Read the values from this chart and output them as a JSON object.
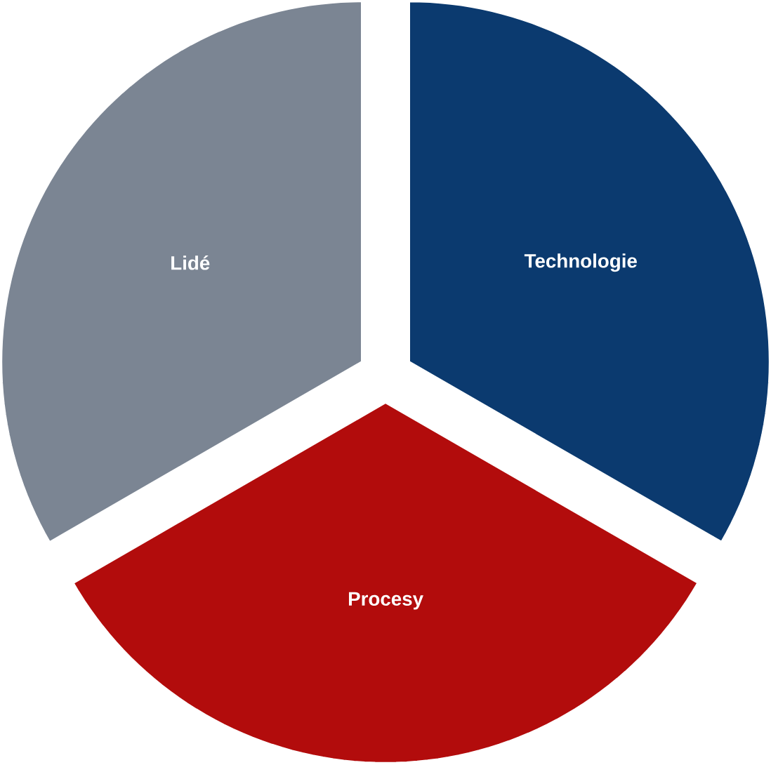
{
  "chart_data": {
    "type": "pie",
    "categories": [
      "Technologie",
      "Procesy",
      "Lidé"
    ],
    "values": [
      33.33,
      33.33,
      33.34
    ],
    "colors": [
      "#0b3a6f",
      "#b20c0c",
      "#7b8593"
    ]
  }
}
